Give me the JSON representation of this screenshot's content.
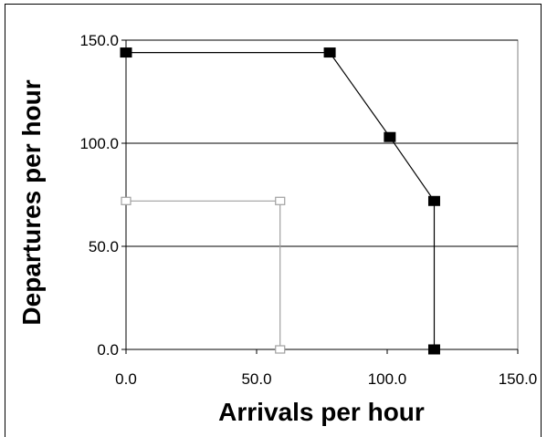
{
  "chart_data": {
    "type": "line",
    "title": "",
    "xlabel": "Arrivals per hour",
    "ylabel": "Departures per hour",
    "xlim": [
      0,
      150
    ],
    "ylim": [
      0,
      150
    ],
    "x_ticks": [
      "0.0",
      "50.0",
      "100.0",
      "150.0"
    ],
    "y_ticks": [
      "0.0",
      "50.0",
      "100.0",
      "150.0"
    ],
    "grid": "horizontal",
    "legend": "none",
    "series": [
      {
        "color": "#000000",
        "marker": "filled-square",
        "points": [
          {
            "x": 0,
            "y": 144
          },
          {
            "x": 78,
            "y": 144
          },
          {
            "x": 101,
            "y": 103
          },
          {
            "x": 118,
            "y": 72
          },
          {
            "x": 118,
            "y": 0
          }
        ]
      },
      {
        "color": "#a0a0a0",
        "marker": "hollow-square",
        "points": [
          {
            "x": 0,
            "y": 72
          },
          {
            "x": 59,
            "y": 72
          },
          {
            "x": 59,
            "y": 0
          }
        ]
      }
    ]
  }
}
